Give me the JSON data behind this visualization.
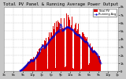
{
  "title": "Total PV Panel & Running Average Power Output",
  "bg_color": "#c8c8c8",
  "plot_bg": "#ffffff",
  "grid_color": "#aaaaaa",
  "bar_color": "#dd0000",
  "bar_edge_color": "#ff2222",
  "avg_color": "#0000cc",
  "ylim": [
    0,
    8000
  ],
  "yticks": [
    0,
    1000,
    2000,
    3000,
    4000,
    5000,
    6000,
    7000,
    8000
  ],
  "ytick_labels": [
    "0",
    "1k",
    "2k",
    "3k",
    "4k",
    "5k",
    "6k",
    "7k",
    "8k"
  ],
  "num_bars": 288,
  "title_fontsize": 4.0,
  "tick_fontsize": 2.8,
  "legend_fontsize": 2.5
}
